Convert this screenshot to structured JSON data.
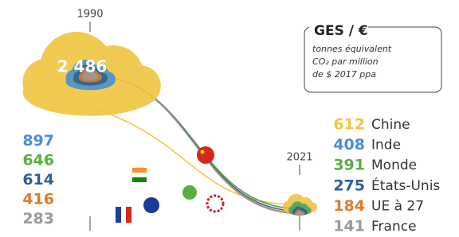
{
  "chart_data": {
    "type": "cloud-slope",
    "title": "GES / €",
    "subtitle": [
      "tonnes équivalent",
      "CO₂ par million",
      "de $ 2017 ppa"
    ],
    "categories": [
      "1990",
      "2021"
    ],
    "series": [
      {
        "name": "Chine",
        "color": "#f0c540",
        "values": [
          2486,
          612
        ],
        "value_labels": [
          "2 486",
          "612"
        ]
      },
      {
        "name": "Inde",
        "color": "#4a8fd4",
        "values": [
          897,
          408
        ]
      },
      {
        "name": "Monde",
        "color": "#5aae3f",
        "values": [
          646,
          391
        ]
      },
      {
        "name": "États-Unis",
        "color": "#2d5f9e",
        "values": [
          614,
          275
        ]
      },
      {
        "name": "UE à 27",
        "color": "#e07b2a",
        "values": [
          416,
          184
        ]
      },
      {
        "name": "France",
        "color": "#9a9a9a",
        "values": [
          283,
          141
        ]
      }
    ]
  }
}
